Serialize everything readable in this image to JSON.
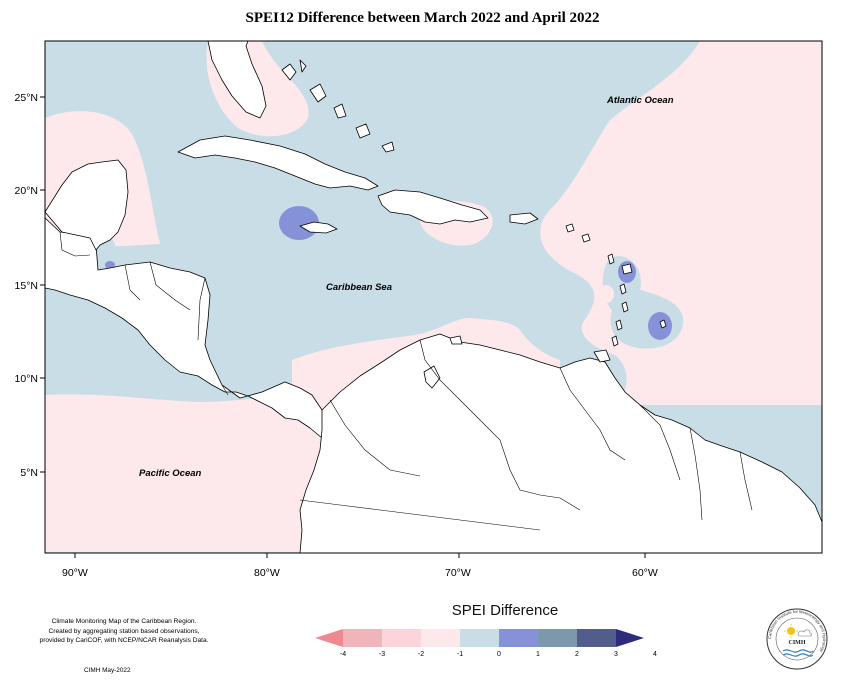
{
  "title": "SPEI12 Difference between March 2022 and April 2022",
  "map": {
    "lon_labels": [
      "90°W",
      "80°W",
      "70°W",
      "60°W"
    ],
    "lat_labels": [
      "25°N",
      "20°N",
      "15°N",
      "10°N",
      "5°N"
    ],
    "ocean_labels": {
      "atlantic": "Atlantic Ocean",
      "caribbean": "Caribbean Sea",
      "pacific": "Pacific Ocean"
    }
  },
  "legend": {
    "title": "SPEI Difference",
    "ticks": [
      "-4",
      "-3",
      "-2",
      "-1",
      "0",
      "1",
      "2",
      "3",
      "4"
    ],
    "colors": [
      "#f1878f",
      "#f0b5bb",
      "#fbd5da",
      "#fde9eb",
      "#c8dde6",
      "#8692d8",
      "#7c98ad",
      "#525d8c",
      "#2e2b7c"
    ]
  },
  "credit": {
    "line1": "Climate Monitoring Map of the Caribbean Region.",
    "line2": "Created by aggregating station based observations,",
    "line3": "provided by CariCOF, with NCEP/NCAR Reanalysis Data.",
    "date": "CIMH May-2022"
  },
  "logo": {
    "acronym": "CIMH",
    "ring_text": "Caribbean Institute for Meteorology and Hydrology"
  }
}
